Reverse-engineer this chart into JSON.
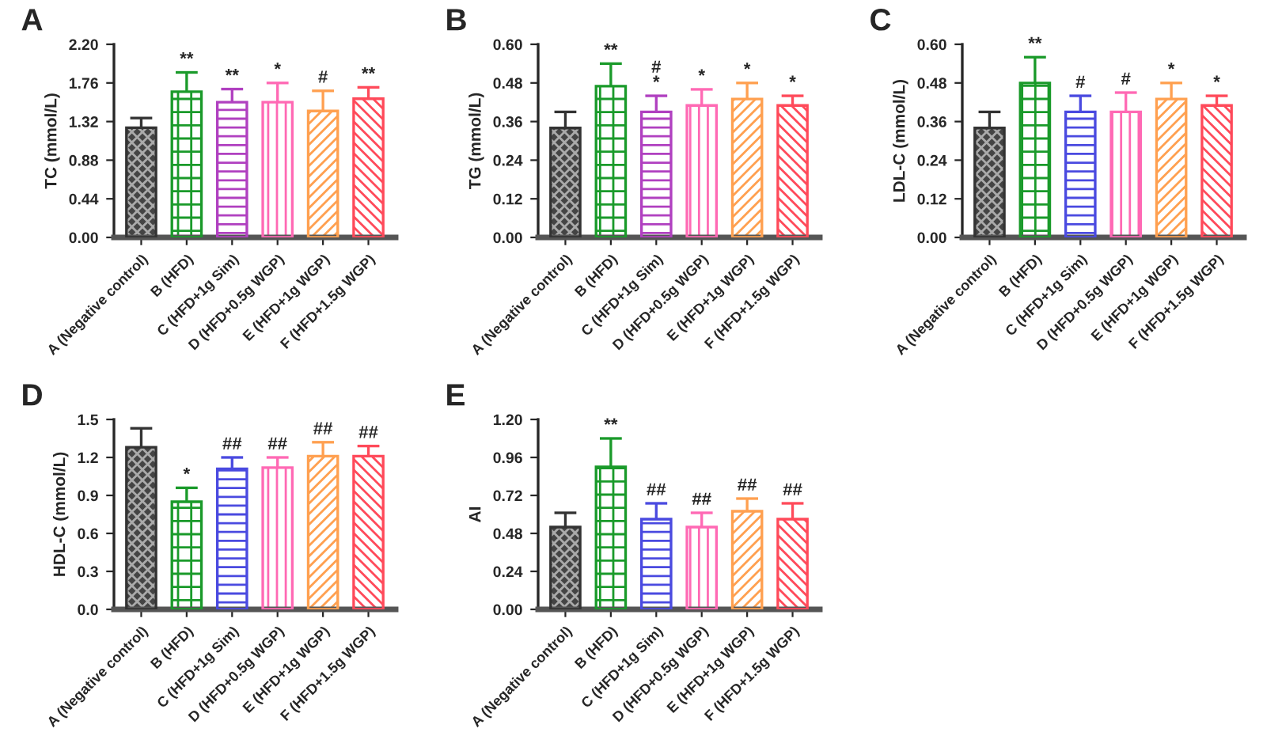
{
  "chart_data": [
    {
      "type": "bar",
      "title": "A",
      "ylabel": "TC (mmol/L)",
      "categories": [
        "A (Negative control)",
        "B (HFD)",
        "C (HFD+1g Sim)",
        "D (HFD+0.5g WGP)",
        "E (HFD+1g WGP)",
        "F (HFD+1.5g WGP)"
      ],
      "values": [
        1.25,
        1.66,
        1.54,
        1.54,
        1.44,
        1.58
      ],
      "errors": [
        0.11,
        0.22,
        0.15,
        0.22,
        0.23,
        0.13
      ],
      "colors": [
        "#555555",
        "#1a9a2a",
        "#b040c0",
        "#ff69b4",
        "#ffa050",
        "#ff4a5a"
      ],
      "ylim": [
        0,
        2.2
      ],
      "yticks": [
        {
          "value": 0,
          "label": "0.00"
        },
        {
          "value": 0.44,
          "label": "0.44"
        },
        {
          "value": 0.88,
          "label": "0.88"
        },
        {
          "value": 1.32,
          "label": "1.32"
        },
        {
          "value": 1.76,
          "label": "1.76"
        },
        {
          "value": 2.2,
          "label": "2.20"
        }
      ],
      "annotations": [
        {
          "text": "**",
          "x": "B (HFD)",
          "y": 1.88
        },
        {
          "text": "**",
          "x": "C (HFD+1g Sim)",
          "y": 1.69
        },
        {
          "text": "*",
          "x": "D (HFD+0.5g WGP)",
          "y": 1.76
        },
        {
          "text": "#",
          "x": "E (HFD+1g WGP)",
          "y": 1.67
        },
        {
          "text": "**",
          "x": "F (HFD+1.5g WGP)",
          "y": 1.71
        }
      ]
    },
    {
      "type": "bar",
      "title": "B",
      "ylabel": "TG (mmol/L)",
      "categories": [
        "A (Negative control)",
        "B (HFD)",
        "C (HFD+1g Sim)",
        "D (HFD+0.5g WGP)",
        "E (HFD+1g WGP)",
        "F (HFD+1.5g WGP)"
      ],
      "values": [
        0.34,
        0.47,
        0.39,
        0.41,
        0.43,
        0.41
      ],
      "errors": [
        0.05,
        0.07,
        0.05,
        0.05,
        0.05,
        0.03
      ],
      "colors": [
        "#555555",
        "#1a9a2a",
        "#b040c0",
        "#ff69b4",
        "#ffa050",
        "#ff4a5a"
      ],
      "ylim": [
        0,
        0.6
      ],
      "yticks": [
        {
          "value": 0,
          "label": "0.00"
        },
        {
          "value": 0.12,
          "label": "0.12"
        },
        {
          "value": 0.24,
          "label": "0.24"
        },
        {
          "value": 0.36,
          "label": "0.36"
        },
        {
          "value": 0.48,
          "label": "0.48"
        },
        {
          "value": 0.6,
          "label": "0.60"
        }
      ],
      "annotations": [
        {
          "text": "**",
          "x": "B (HFD)",
          "y": 0.54
        },
        {
          "text": "#\n*",
          "x": "C (HFD+1g Sim)",
          "y": 0.44
        },
        {
          "text": "*",
          "x": "D (HFD+0.5g WGP)",
          "y": 0.46
        },
        {
          "text": "*",
          "x": "E (HFD+1g WGP)",
          "y": 0.48
        },
        {
          "text": "*",
          "x": "F (HFD+1.5g WGP)",
          "y": 0.44
        }
      ]
    },
    {
      "type": "bar",
      "title": "C",
      "ylabel": "LDL-C (mmol/L)",
      "categories": [
        "A (Negative control)",
        "B (HFD)",
        "C (HFD+1g Sim)",
        "D (HFD+0.5g WGP)",
        "E (HFD+1g WGP)",
        "F (HFD+1.5g WGP)"
      ],
      "values": [
        0.34,
        0.48,
        0.39,
        0.39,
        0.43,
        0.41
      ],
      "errors": [
        0.05,
        0.08,
        0.05,
        0.06,
        0.05,
        0.03
      ],
      "colors": [
        "#555555",
        "#1a9a2a",
        "#4a4ae0",
        "#ff69b4",
        "#ffa050",
        "#ff4a5a"
      ],
      "ylim": [
        0,
        0.6
      ],
      "yticks": [
        {
          "value": 0,
          "label": "0.00"
        },
        {
          "value": 0.12,
          "label": "0.12"
        },
        {
          "value": 0.24,
          "label": "0.24"
        },
        {
          "value": 0.36,
          "label": "0.36"
        },
        {
          "value": 0.48,
          "label": "0.48"
        },
        {
          "value": 0.6,
          "label": "0.60"
        }
      ],
      "annotations": [
        {
          "text": "**",
          "x": "B (HFD)",
          "y": 0.56
        },
        {
          "text": "#",
          "x": "C (HFD+1g Sim)",
          "y": 0.44
        },
        {
          "text": "#",
          "x": "D (HFD+0.5g WGP)",
          "y": 0.45
        },
        {
          "text": "*",
          "x": "E (HFD+1g WGP)",
          "y": 0.48
        },
        {
          "text": "*",
          "x": "F (HFD+1.5g WGP)",
          "y": 0.44
        }
      ]
    },
    {
      "type": "bar",
      "title": "D",
      "ylabel": "HDL-C (mmol/L)",
      "categories": [
        "A (Negative control)",
        "B (HFD)",
        "C (HFD+1g Sim)",
        "D (HFD+0.5g WGP)",
        "E (HFD+1g WGP)",
        "F (HFD+1.5g WGP)"
      ],
      "values": [
        1.28,
        0.85,
        1.11,
        1.12,
        1.21,
        1.21
      ],
      "errors": [
        0.15,
        0.11,
        0.09,
        0.08,
        0.11,
        0.08
      ],
      "colors": [
        "#555555",
        "#1a9a2a",
        "#4a4ae0",
        "#ff69b4",
        "#ffa050",
        "#ff4a5a"
      ],
      "ylim": [
        0,
        1.5
      ],
      "yticks": [
        {
          "value": 0,
          "label": "0.0"
        },
        0.3,
        0.6,
        0.9,
        1.2,
        1.5
      ],
      "annotations": [
        {
          "text": "*",
          "x": "B (HFD)",
          "y": 0.96
        },
        {
          "text": "##",
          "x": "C (HFD+1g Sim)",
          "y": 1.2
        },
        {
          "text": "##",
          "x": "D (HFD+0.5g WGP)",
          "y": 1.2
        },
        {
          "text": "##",
          "x": "E (HFD+1g WGP)",
          "y": 1.32
        },
        {
          "text": "##",
          "x": "F (HFD+1.5g WGP)",
          "y": 1.29
        }
      ]
    },
    {
      "type": "bar",
      "title": "E",
      "ylabel": "AI",
      "categories": [
        "A (Negative control)",
        "B (HFD)",
        "C (HFD+1g Sim)",
        "D (HFD+0.5g WGP)",
        "E (HFD+1g WGP)",
        "F (HFD+1.5g WGP)"
      ],
      "values": [
        0.52,
        0.9,
        0.57,
        0.52,
        0.62,
        0.57
      ],
      "errors": [
        0.09,
        0.18,
        0.1,
        0.09,
        0.08,
        0.1
      ],
      "colors": [
        "#555555",
        "#1a9a2a",
        "#4a4ae0",
        "#ff69b4",
        "#ffa050",
        "#ff4a5a"
      ],
      "ylim": [
        0,
        1.2
      ],
      "yticks": [
        {
          "value": 0,
          "label": "0.00"
        },
        0.24,
        0.48,
        0.72,
        0.96,
        {
          "value": 1.2,
          "label": "1.20"
        }
      ],
      "annotations": [
        {
          "text": "**",
          "x": "B (HFD)",
          "y": 1.08
        },
        {
          "text": "##",
          "x": "C (HFD+1g Sim)",
          "y": 0.67
        },
        {
          "text": "##",
          "x": "D (HFD+0.5g WGP)",
          "y": 0.61
        },
        {
          "text": "##",
          "x": "E (HFD+1g WGP)",
          "y": 0.7
        },
        {
          "text": "##",
          "x": "F (HFD+1.5g WGP)",
          "y": 0.67
        }
      ]
    }
  ]
}
